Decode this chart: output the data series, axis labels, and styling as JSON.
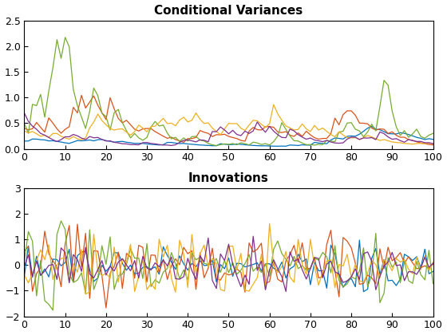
{
  "n": 101,
  "title1": "Conditional Variances",
  "title2": "Innovations",
  "xlim": [
    0,
    100
  ],
  "ylim1": [
    0,
    2.5
  ],
  "ylim2": [
    -2,
    3
  ],
  "xticks": [
    0,
    10,
    20,
    30,
    40,
    50,
    60,
    70,
    80,
    90,
    100
  ],
  "yticks1": [
    0,
    0.5,
    1.0,
    1.5,
    2.0,
    2.5
  ],
  "yticks2": [
    -2,
    -1,
    0,
    1,
    2,
    3
  ],
  "colors": [
    "#0072BD",
    "#D95319",
    "#77AC30",
    "#EDB120",
    "#7E2F8E"
  ],
  "background": "#ffffff",
  "figsize": [
    5.6,
    4.2
  ],
  "dpi": 100
}
